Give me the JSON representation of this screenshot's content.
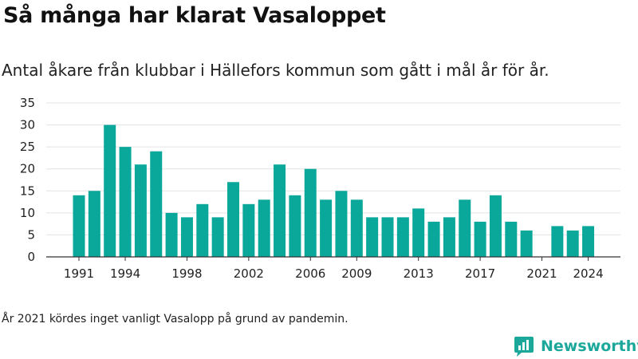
{
  "title": "Så många har klarat Vasaloppet",
  "subtitle": "Antal åkare från klubbar i Hällefors kommun som gått i mål år för år.",
  "note": "År 2021 kördes inget vanligt Vasalopp på grund av pandemin.",
  "brand": {
    "name": "Newsworthy",
    "color": "#1ba89a",
    "logo_icon": "bar-chart-icon"
  },
  "chart_data": {
    "type": "bar",
    "x": [
      1991,
      1992,
      1993,
      1994,
      1995,
      1996,
      1997,
      1998,
      1999,
      2000,
      2001,
      2002,
      2003,
      2004,
      2005,
      2006,
      2007,
      2008,
      2009,
      2010,
      2011,
      2012,
      2013,
      2014,
      2015,
      2016,
      2017,
      2018,
      2019,
      2020,
      2021,
      2022,
      2023,
      2024
    ],
    "values": [
      14,
      15,
      30,
      25,
      21,
      24,
      10,
      9,
      12,
      9,
      17,
      12,
      13,
      21,
      14,
      20,
      13,
      15,
      13,
      9,
      9,
      9,
      11,
      8,
      9,
      13,
      8,
      14,
      8,
      6,
      null,
      7,
      6,
      7
    ],
    "xticks": [
      1991,
      1994,
      1998,
      2002,
      2006,
      2009,
      2013,
      2017,
      2021,
      2024
    ],
    "yticks": [
      0,
      5,
      10,
      15,
      20,
      25,
      30,
      35
    ],
    "ylim": [
      0,
      35
    ],
    "bar_color": "#0aa89a",
    "grid": true
  }
}
